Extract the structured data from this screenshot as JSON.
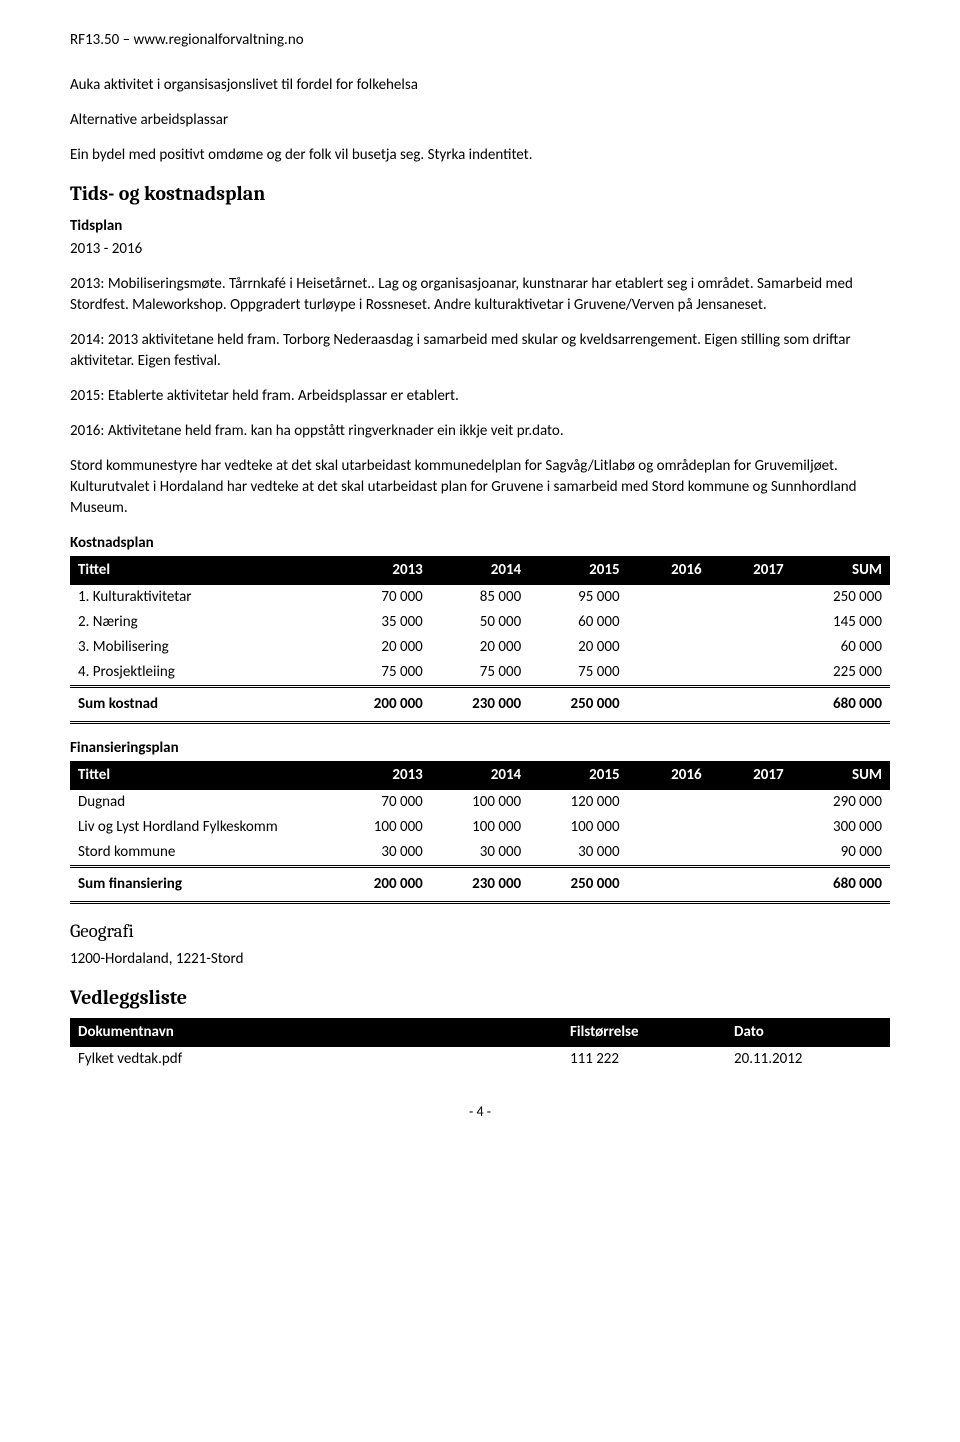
{
  "header_ref": "RF13.50 – www.regionalforvaltning.no",
  "intro": {
    "p1": "Auka aktivitet i organsisasjonslivet til fordel for folkehelsa",
    "p2": "Alternative arbeidsplassar",
    "p3": "Ein bydel med positivt omdøme og der folk vil busetja seg. Styrka indentitet."
  },
  "tidsplan": {
    "title": "Tids- og kostnadsplan",
    "sub": "Tidsplan",
    "range": "2013 - 2016",
    "p1": "2013: Mobiliseringsmøte. Tårrnkafé i Heisetårnet.. Lag og organisasjoanar, kunstnarar har etablert seg i området. Samarbeid med Stordfest. Maleworkshop. Oppgradert turløype i Rossneset. Andre kulturaktivetar i Gruvene/Verven på Jensaneset.",
    "p2": "2014: 2013 aktivitetane held fram. Torborg Nederaasdag i samarbeid med skular og kveldsarrengement. Eigen stilling som driftar aktivitetar. Eigen festival.",
    "p3": "2015: Etablerte aktivitetar held fram. Arbeidsplassar er etablert.",
    "p4": "2016: Aktivitetane held fram. kan ha oppstått ringverknader ein ikkje veit pr.dato.",
    "p5": "Stord kommunestyre har vedteke at det skal utarbeidast kommunedelplan for Sagvåg/Litlabø og områdeplan for Gruvemiljøet.  Kulturutvalet i Hordaland har vedteke at det skal utarbeidast plan for Gruvene i samarbeid med Stord kommune og Sunnhordland Museum."
  },
  "kostnad": {
    "title": "Kostnadsplan",
    "columns": [
      "Tittel",
      "2013",
      "2014",
      "2015",
      "2016",
      "2017",
      "SUM"
    ],
    "rows": [
      [
        "1. Kulturaktivitetar",
        "70 000",
        "85 000",
        "95 000",
        "",
        "",
        "250 000"
      ],
      [
        "2. Næring",
        "35 000",
        "50 000",
        "60 000",
        "",
        "",
        "145 000"
      ],
      [
        "3. Mobilisering",
        "20 000",
        "20 000",
        "20 000",
        "",
        "",
        "60 000"
      ],
      [
        "4. Prosjektleiing",
        "75 000",
        "75 000",
        "75 000",
        "",
        "",
        "225 000"
      ]
    ],
    "sum": [
      "Sum kostnad",
      "200 000",
      "230 000",
      "250 000",
      "",
      "",
      "680 000"
    ]
  },
  "finans": {
    "title": "Finansieringsplan",
    "columns": [
      "Tittel",
      "2013",
      "2014",
      "2015",
      "2016",
      "2017",
      "SUM"
    ],
    "rows": [
      [
        "Dugnad",
        "70 000",
        "100 000",
        "120 000",
        "",
        "",
        "290 000"
      ],
      [
        "Liv og Lyst Hordland Fylkeskomm",
        "100 000",
        "100 000",
        "100 000",
        "",
        "",
        "300 000"
      ],
      [
        "Stord kommune",
        "30 000",
        "30 000",
        "30 000",
        "",
        "",
        "90 000"
      ]
    ],
    "sum": [
      "Sum finansiering",
      "200 000",
      "230 000",
      "250 000",
      "",
      "",
      "680 000"
    ]
  },
  "geografi": {
    "title": "Geografi",
    "text": "1200-Hordaland, 1221-Stord"
  },
  "vedlegg": {
    "title": "Vedleggsliste",
    "columns": [
      "Dokumentnavn",
      "Filstørrelse",
      "Dato"
    ],
    "rows": [
      [
        "Fylket vedtak.pdf",
        "111 222",
        "20.11.2012"
      ]
    ]
  },
  "page_num": "- 4 -",
  "col_widths": {
    "data_table": [
      "32%",
      "12%",
      "12%",
      "12%",
      "10%",
      "10%",
      "12%"
    ],
    "attach_table": [
      "60%",
      "20%",
      "20%"
    ]
  }
}
